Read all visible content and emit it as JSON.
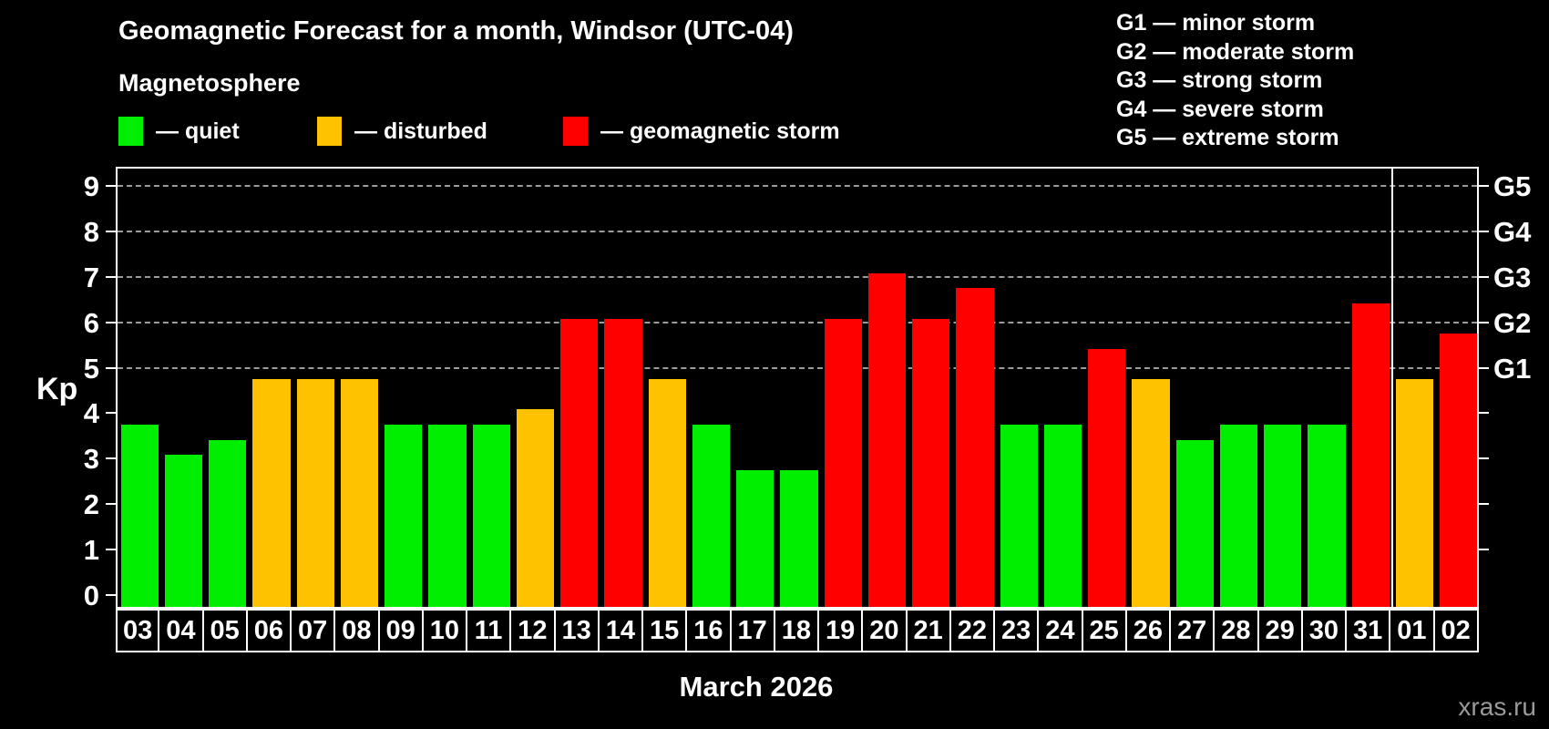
{
  "title": "Geomagnetic Forecast for a month, Windsor (UTC-04)",
  "subtitle": "Magnetosphere",
  "legend_items": [
    {
      "key": "quiet",
      "label": "— quiet",
      "color": "#00ee00",
      "x": 130
    },
    {
      "key": "disturbed",
      "label": "— disturbed",
      "color": "#ffc200",
      "x": 348
    },
    {
      "key": "storm",
      "label": "— geomagnetic storm",
      "color": "#fe0000",
      "x": 618
    }
  ],
  "g_legend": [
    {
      "code": "G1",
      "label": "G1 — minor storm"
    },
    {
      "code": "G2",
      "label": "G2 — moderate storm"
    },
    {
      "code": "G3",
      "label": "G3 — strong storm"
    },
    {
      "code": "G4",
      "label": "G4 — severe storm"
    },
    {
      "code": "G5",
      "label": "G5 — extreme storm"
    }
  ],
  "footer": {
    "xaxis_title": "March 2026",
    "watermark": "xras.ru"
  },
  "chart_data": {
    "type": "bar",
    "title": "Geomagnetic Forecast for a month, Windsor (UTC-04)",
    "ylabel": "Kp",
    "xlabel": "March 2026",
    "ylim": [
      -0.35,
      9.4
    ],
    "yticks": [
      0,
      1,
      2,
      3,
      4,
      5,
      6,
      7,
      8,
      9
    ],
    "gridlines_at": [
      5,
      6,
      7,
      8,
      9
    ],
    "grid": "dashed horizontal at G-storm levels only",
    "legend_position": "top",
    "right_axis_labels": [
      {
        "kp": 5,
        "label": "G1"
      },
      {
        "kp": 6,
        "label": "G2"
      },
      {
        "kp": 7,
        "label": "G3"
      },
      {
        "kp": 8,
        "label": "G4"
      },
      {
        "kp": 9,
        "label": "G5"
      }
    ],
    "status_colors": {
      "quiet": "#00ee00",
      "disturbed": "#ffc200",
      "storm": "#fe0000"
    },
    "month_separator_before_category": "01",
    "categories": [
      "03",
      "04",
      "05",
      "06",
      "07",
      "08",
      "09",
      "10",
      "11",
      "12",
      "13",
      "14",
      "15",
      "16",
      "17",
      "18",
      "19",
      "20",
      "21",
      "22",
      "23",
      "24",
      "25",
      "26",
      "27",
      "28",
      "29",
      "30",
      "31",
      "01",
      "02"
    ],
    "values": [
      3.67,
      3.0,
      3.33,
      4.67,
      4.67,
      4.67,
      3.67,
      3.67,
      3.67,
      4.0,
      6.0,
      6.0,
      4.67,
      3.67,
      2.67,
      2.67,
      6.0,
      7.0,
      6.0,
      6.67,
      3.67,
      3.67,
      5.33,
      4.67,
      3.33,
      3.67,
      3.67,
      3.67,
      6.33,
      4.67,
      5.67
    ],
    "statuses": [
      "quiet",
      "quiet",
      "quiet",
      "disturbed",
      "disturbed",
      "disturbed",
      "quiet",
      "quiet",
      "quiet",
      "disturbed",
      "storm",
      "storm",
      "disturbed",
      "quiet",
      "quiet",
      "quiet",
      "storm",
      "storm",
      "storm",
      "storm",
      "quiet",
      "quiet",
      "storm",
      "disturbed",
      "quiet",
      "quiet",
      "quiet",
      "quiet",
      "storm",
      "disturbed",
      "storm"
    ]
  }
}
